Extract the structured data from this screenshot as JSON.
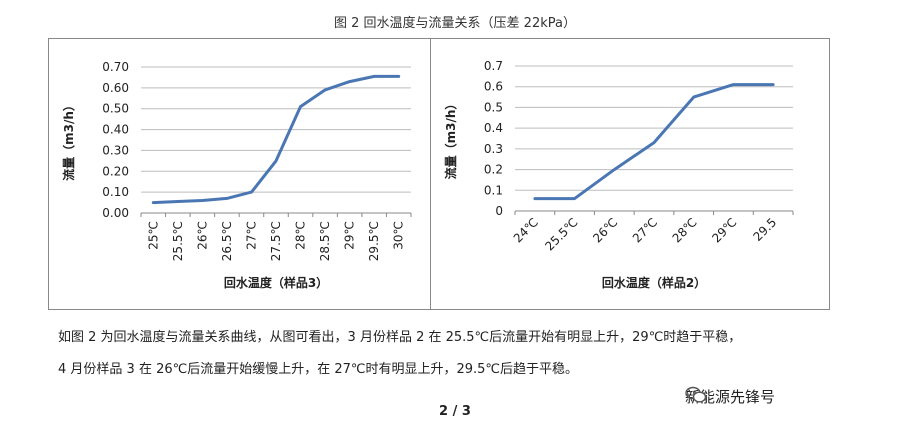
{
  "figure_title": "图 2  回水温度与流量关系（压差 22kPa）",
  "chart_data": [
    {
      "type": "line",
      "categories": [
        "25℃",
        "25.5℃",
        "26℃",
        "26.5℃",
        "27℃",
        "27.5℃",
        "28℃",
        "28.5℃",
        "29℃",
        "29.5℃",
        "30℃"
      ],
      "series": [
        {
          "name": "样品3",
          "values": [
            0.05,
            0.055,
            0.06,
            0.07,
            0.1,
            0.25,
            0.51,
            0.59,
            0.63,
            0.655,
            0.655
          ]
        }
      ],
      "y_ticks": [
        "0.70",
        "0.60",
        "0.50",
        "0.40",
        "0.30",
        "0.20",
        "0.10",
        "0.00"
      ],
      "ylim": [
        0,
        0.7
      ],
      "xlabel": "回水温度（样品3）",
      "ylabel": "流量（m3/h）",
      "grid": true,
      "color": "#4a77b4"
    },
    {
      "type": "line",
      "categories": [
        "24℃",
        "25.5℃",
        "26℃",
        "27℃",
        "28℃",
        "29℃",
        "29.5"
      ],
      "series": [
        {
          "name": "样品2",
          "values": [
            0.06,
            0.06,
            0.2,
            0.33,
            0.55,
            0.61,
            0.61
          ]
        }
      ],
      "y_ticks": [
        "0.7",
        "0.6",
        "0.5",
        "0.4",
        "0.3",
        "0.2",
        "0.1",
        "0"
      ],
      "ylim": [
        0,
        0.7
      ],
      "xlabel": "回水温度（样品2）",
      "ylabel": "流量（m3/h）",
      "grid": true,
      "color": "#4a77b4"
    }
  ],
  "paragraph1": "如图 2 为回水温度与流量关系曲线，从图可看出，3 月份样品 2 在 25.5℃后流量开始有明显上升，29℃时趋于平稳，",
  "paragraph2": "4 月份样品 3 在 26℃后流量开始缓慢上升，在 27℃时有明显上升，29.5℃后趋于平稳。",
  "watermark": "新能源先锋号",
  "page_number": "2 / 3"
}
